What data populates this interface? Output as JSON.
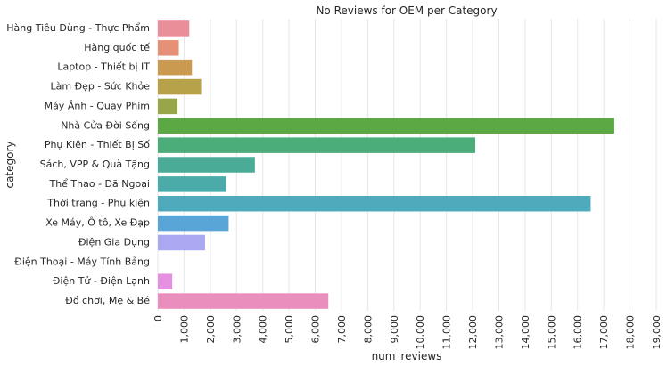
{
  "chart_data": {
    "type": "bar",
    "orientation": "horizontal",
    "title": "No Reviews for OEM per Category",
    "xlabel": "num_reviews",
    "ylabel": "category",
    "xlim": [
      0,
      19000
    ],
    "grid": true,
    "xticks": [
      0,
      1000,
      2000,
      3000,
      4000,
      5000,
      6000,
      7000,
      8000,
      9000,
      10000,
      11000,
      12000,
      13000,
      14000,
      15000,
      16000,
      17000,
      18000,
      19000
    ],
    "xtick_labels": [
      "0",
      "1,000",
      "2,000",
      "3,000",
      "4,000",
      "5,000",
      "6,000",
      "7,000",
      "8,000",
      "9,000",
      "10,000",
      "11,000",
      "12,000",
      "13,000",
      "14,000",
      "15,000",
      "16,000",
      "17,000",
      "18,000",
      "19,000"
    ],
    "categories": [
      "Hàng Tiêu Dùng - Thực Phẩm",
      "Hàng quốc tế",
      "Laptop - Thiết bị IT",
      "Làm Đẹp - Sức Khỏe",
      "Máy Ảnh - Quay Phim",
      "Nhà Cửa Đời Sống",
      "Phụ Kiện - Thiết Bị Số",
      "Sách, VPP & Quà Tặng",
      "Thể Thao - Dã Ngoại",
      "Thời trang - Phụ kiện",
      "Xe Máy, Ô tô, Xe Đạp",
      "Điện Gia Dụng",
      "Điện Thoại - Máy Tính Bảng",
      "Điện Tử - Điện Lạnh",
      "Đồ chơi, Mẹ & Bé"
    ],
    "values": [
      1200,
      800,
      1300,
      1650,
      750,
      17400,
      12100,
      3700,
      2600,
      16500,
      2700,
      1800,
      0,
      550,
      6500
    ],
    "colors": [
      "#ea8e99",
      "#e69177",
      "#c99a4f",
      "#b8a249",
      "#98a649",
      "#5ba845",
      "#4bad79",
      "#4aac97",
      "#4aaba9",
      "#4faabc",
      "#5aa5d8",
      "#aaa8f0",
      "#d396f0",
      "#e590e0",
      "#ea8ebd"
    ]
  }
}
